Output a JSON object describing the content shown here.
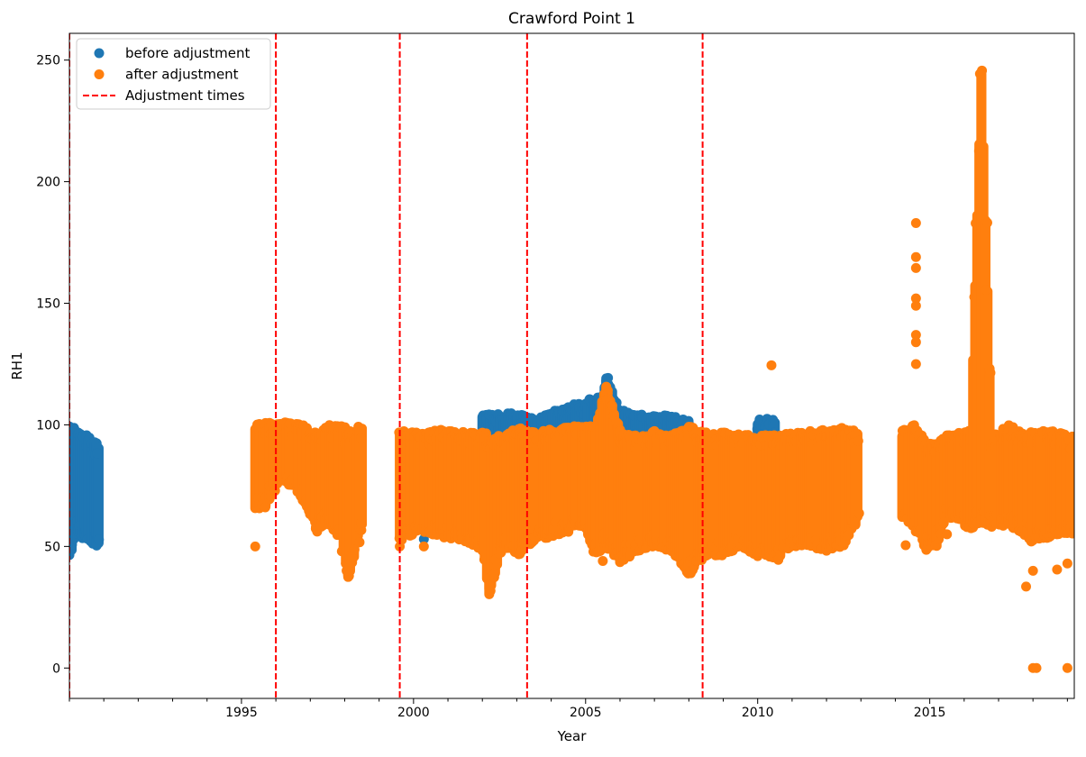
{
  "chart_data": {
    "type": "scatter",
    "title": "Crawford Point 1",
    "xlabel": "Year",
    "ylabel": "RH1",
    "xlim": [
      1990.0,
      2019.2
    ],
    "ylim": [
      -12.5,
      261
    ],
    "x_ticks": [
      1995,
      2000,
      2005,
      2010,
      2015
    ],
    "y_ticks": [
      0,
      50,
      100,
      150,
      200,
      250
    ],
    "grid": false,
    "legend_position": "top-left",
    "legend": [
      {
        "label": "before adjustment",
        "kind": "marker",
        "color": "#1f77b4"
      },
      {
        "label": "after adjustment",
        "kind": "marker",
        "color": "#ff7f0e"
      },
      {
        "label": "Adjustment times",
        "kind": "dashed-line",
        "color": "#ff0000"
      }
    ],
    "adjustment_times": [
      1990.0,
      1996.0,
      1999.6,
      2003.3,
      2008.4
    ],
    "series": [
      {
        "name": "before adjustment",
        "color": "#1f77b4",
        "envelope": [
          [
            1990.0,
            45,
            101
          ],
          [
            1990.2,
            55,
            98
          ],
          [
            1990.5,
            52,
            96
          ],
          [
            1990.85,
            50,
            93
          ],
          [
            1999.8,
            58,
            101
          ],
          [
            2001.0,
            56,
            101
          ],
          [
            2002.0,
            57,
            104
          ],
          [
            2002.8,
            58,
            105
          ],
          [
            2003.6,
            60,
            103
          ],
          [
            2004.5,
            58,
            108
          ],
          [
            2005.0,
            62,
            110
          ],
          [
            2005.5,
            58,
            112
          ],
          [
            2005.6,
            60,
            120
          ],
          [
            2006.0,
            56,
            106
          ],
          [
            2006.8,
            55,
            104
          ],
          [
            2007.5,
            57,
            104
          ],
          [
            2008.0,
            50,
            102
          ],
          [
            2009.0,
            56,
            103
          ],
          [
            2010.0,
            57,
            103
          ],
          [
            2010.5,
            58,
            102
          ]
        ],
        "outliers": [
          [
            2000.3,
            53
          ],
          [
            2004.5,
            60
          ],
          [
            2005.6,
            118
          ]
        ]
      },
      {
        "name": "after adjustment",
        "color": "#ff7f0e",
        "envelope": [
          [
            1995.4,
            65,
            100
          ],
          [
            1995.7,
            66,
            101
          ],
          [
            1996.1,
            77,
            101
          ],
          [
            1996.6,
            74,
            101
          ],
          [
            1997.2,
            56,
            97
          ],
          [
            1997.5,
            60,
            100
          ],
          [
            1997.9,
            52,
            100
          ],
          [
            1998.1,
            36,
            97
          ],
          [
            1998.5,
            58,
            100
          ],
          [
            1999.6,
            52,
            98
          ],
          [
            2000.2,
            56,
            97
          ],
          [
            2000.8,
            54,
            98
          ],
          [
            2001.5,
            52,
            97
          ],
          [
            2002.0,
            48,
            97
          ],
          [
            2002.2,
            30,
            96
          ],
          [
            2002.6,
            50,
            95
          ],
          [
            2003.0,
            46,
            99
          ],
          [
            2003.5,
            52,
            97
          ],
          [
            2004.0,
            54,
            98
          ],
          [
            2004.5,
            56,
            99
          ],
          [
            2004.9,
            58,
            100
          ],
          [
            2005.3,
            46,
            100
          ],
          [
            2005.6,
            50,
            116
          ],
          [
            2006.0,
            43,
            98
          ],
          [
            2006.5,
            48,
            96
          ],
          [
            2007.0,
            50,
            98
          ],
          [
            2007.5,
            48,
            96
          ],
          [
            2008.0,
            38,
            100
          ],
          [
            2008.5,
            46,
            97
          ],
          [
            2009.0,
            46,
            97
          ],
          [
            2009.5,
            50,
            96
          ],
          [
            2010.0,
            46,
            96
          ],
          [
            2010.6,
            45,
            96
          ],
          [
            2011.0,
            50,
            97
          ],
          [
            2011.5,
            50,
            98
          ],
          [
            2012.0,
            48,
            98
          ],
          [
            2012.5,
            50,
            99
          ],
          [
            2012.9,
            60,
            98
          ],
          [
            2014.2,
            62,
            98
          ],
          [
            2014.5,
            58,
            100
          ],
          [
            2014.7,
            55,
            98
          ],
          [
            2014.9,
            48,
            92
          ],
          [
            2015.2,
            50,
            94
          ],
          [
            2015.5,
            62,
            96
          ],
          [
            2016.2,
            57,
            98
          ],
          [
            2016.5,
            60,
            247
          ],
          [
            2016.8,
            58,
            95
          ],
          [
            2017.3,
            58,
            100
          ],
          [
            2017.6,
            56,
            98
          ],
          [
            2018.0,
            52,
            97
          ],
          [
            2018.3,
            53,
            98
          ],
          [
            2018.8,
            55,
            97
          ],
          [
            2019.2,
            55,
            95
          ]
        ],
        "outliers": [
          [
            1995.4,
            50
          ],
          [
            1999.6,
            50
          ],
          [
            2000.3,
            50
          ],
          [
            2005.5,
            44
          ],
          [
            2010.4,
            124.5
          ],
          [
            2010.6,
            44.5
          ],
          [
            2014.6,
            183
          ],
          [
            2014.6,
            169
          ],
          [
            2014.6,
            164.5
          ],
          [
            2014.6,
            152
          ],
          [
            2014.6,
            149
          ],
          [
            2014.6,
            137
          ],
          [
            2014.6,
            134
          ],
          [
            2014.6,
            125
          ],
          [
            2014.3,
            50.5
          ],
          [
            2015.5,
            55
          ],
          [
            2017.8,
            33.5
          ],
          [
            2018.0,
            0
          ],
          [
            2018.1,
            0
          ],
          [
            2019.0,
            0
          ],
          [
            2018.7,
            40.5
          ],
          [
            2019.0,
            43
          ],
          [
            2018.0,
            40
          ]
        ]
      }
    ]
  }
}
